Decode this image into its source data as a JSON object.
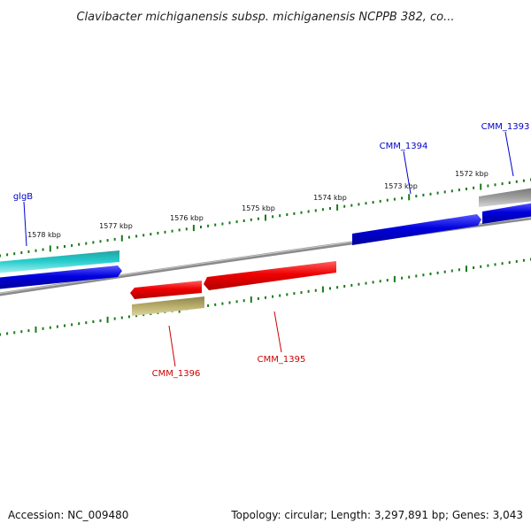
{
  "title": "Clavibacter michiganensis subsp. michiganensis NCPPB 382, co...",
  "footer": {
    "accession": "Accession: NC_009480",
    "stats": "Topology: circular; Length: 3,297,891 bp; Genes: 3,043"
  },
  "colors": {
    "background": "#ffffff",
    "backbone": "#8a8a8a",
    "ticks": "#1a7a1a",
    "forward_label": "#0000cc",
    "reverse_label": "#cc0000"
  },
  "ticks": [
    "1572 kbp",
    "1573 kbp",
    "1574 kbp",
    "1575 kbp",
    "1576 kbp",
    "1577 kbp",
    "1578 kbp"
  ],
  "genes": [
    {
      "label": "CMM_1393",
      "strand": "forward",
      "color": "#9a9a9a"
    },
    {
      "label": "CMM_1394",
      "strand": "forward",
      "color": "#0000dd"
    },
    {
      "label": "glgB",
      "strand": "forward",
      "color": "#22cccc"
    },
    {
      "label": "CMM_1395",
      "strand": "reverse",
      "color": "#ee0000"
    },
    {
      "label": "CMM_1396",
      "strand": "reverse",
      "color": "#ee0000"
    },
    {
      "label": "",
      "strand": "reverse",
      "color": "#b5aa66"
    }
  ]
}
